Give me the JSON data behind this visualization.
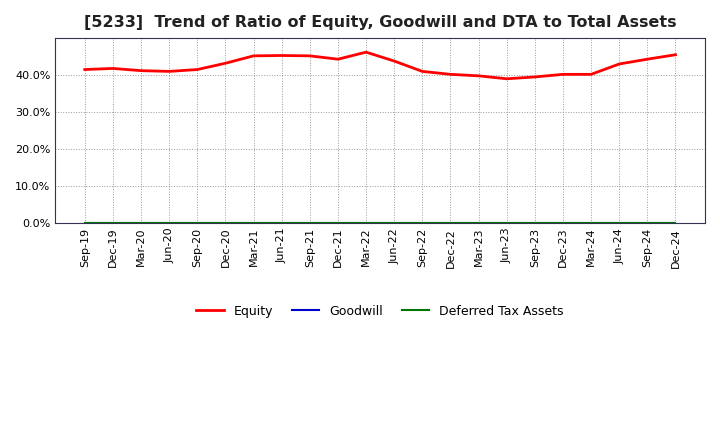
{
  "title": "[5233]  Trend of Ratio of Equity, Goodwill and DTA to Total Assets",
  "x_labels": [
    "Sep-19",
    "Dec-19",
    "Mar-20",
    "Jun-20",
    "Sep-20",
    "Dec-20",
    "Mar-21",
    "Jun-21",
    "Sep-21",
    "Dec-21",
    "Mar-22",
    "Jun-22",
    "Sep-22",
    "Dec-22",
    "Mar-23",
    "Jun-23",
    "Sep-23",
    "Dec-23",
    "Mar-24",
    "Jun-24",
    "Sep-24",
    "Dec-24"
  ],
  "equity": [
    0.415,
    0.418,
    0.412,
    0.41,
    0.415,
    0.432,
    0.452,
    0.453,
    0.452,
    0.443,
    0.462,
    0.438,
    0.41,
    0.402,
    0.398,
    0.39,
    0.395,
    0.402,
    0.402,
    0.43,
    0.443,
    0.455
  ],
  "goodwill": [
    0.0005,
    0.0005,
    0.0005,
    0.0005,
    0.0005,
    0.0005,
    0.0005,
    0.0005,
    0.0005,
    0.0005,
    0.0005,
    0.0005,
    0.0005,
    0.0005,
    0.0005,
    0.0005,
    0.0005,
    0.0005,
    0.0005,
    0.0005,
    0.0005,
    0.0005
  ],
  "dta": [
    0.0003,
    0.0003,
    0.0003,
    0.0003,
    0.0003,
    0.0003,
    0.0003,
    0.0003,
    0.0003,
    0.0003,
    0.0003,
    0.0003,
    0.0003,
    0.0003,
    0.0003,
    0.0003,
    0.0003,
    0.0003,
    0.0003,
    0.0003,
    0.0003,
    0.0003
  ],
  "equity_color": "#FF0000",
  "goodwill_color": "#0000CC",
  "dta_color": "#007700",
  "bg_color": "#FFFFFF",
  "plot_bg_color": "#FFFFFF",
  "grid_color": "#999999",
  "spine_color": "#333355",
  "ylim": [
    0.0,
    0.5
  ],
  "yticks": [
    0.0,
    0.1,
    0.2,
    0.3,
    0.4
  ],
  "title_fontsize": 11.5,
  "tick_fontsize": 8.0,
  "legend_labels": [
    "Equity",
    "Goodwill",
    "Deferred Tax Assets"
  ]
}
